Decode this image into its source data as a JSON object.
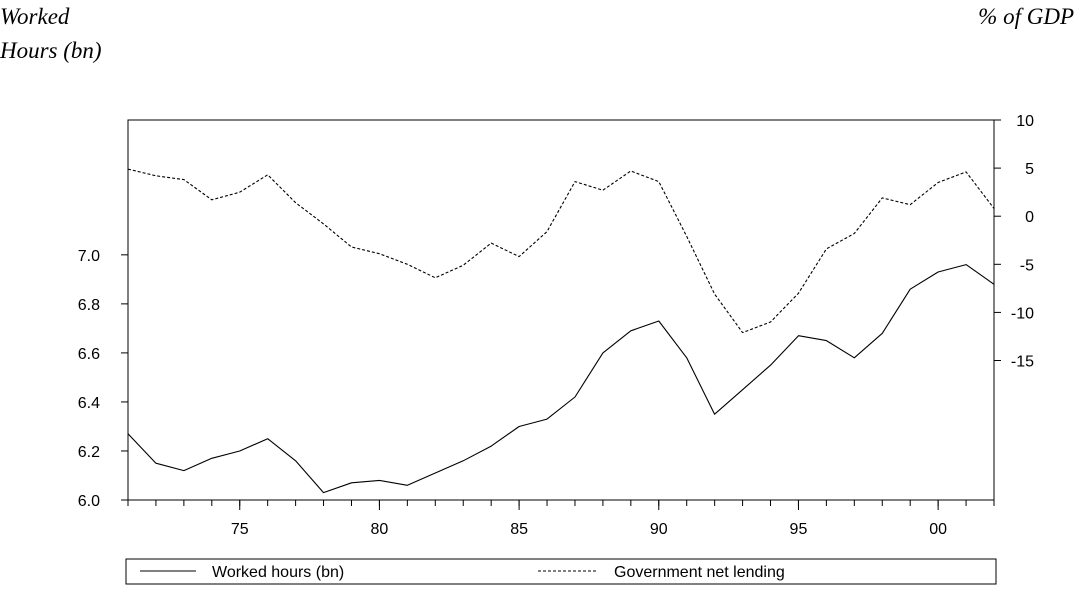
{
  "header": {
    "left_axis_title_line1": "Worked",
    "left_axis_title_line2": "Hours (bn)",
    "right_axis_title": "% of GDP"
  },
  "chart_data": {
    "type": "line",
    "title": "",
    "xlabel": "",
    "x": [
      1971,
      1972,
      1973,
      1974,
      1975,
      1976,
      1977,
      1978,
      1979,
      1980,
      1981,
      1982,
      1983,
      1984,
      1985,
      1986,
      1987,
      1988,
      1989,
      1990,
      1991,
      1992,
      1993,
      1994,
      1995,
      1996,
      1997,
      1998,
      1999,
      2000,
      2001,
      2002
    ],
    "x_tick_values": [
      1975,
      1980,
      1985,
      1990,
      1995,
      2000
    ],
    "x_tick_labels": [
      "75",
      "80",
      "85",
      "90",
      "95",
      "00"
    ],
    "xlim": [
      1971,
      2002
    ],
    "left_axis": {
      "ylim": [
        6.0,
        7.55
      ],
      "ticks": [
        6.0,
        6.2,
        6.4,
        6.6,
        6.8,
        7.0
      ],
      "tick_labels": [
        "6.0",
        "6.2",
        "6.4",
        "6.6",
        "6.8",
        "7.0"
      ]
    },
    "right_axis": {
      "ylim": [
        -29.5,
        10
      ],
      "ticks": [
        10,
        5,
        0,
        -5,
        -10,
        -15
      ],
      "tick_labels": [
        "10",
        "5",
        "0",
        "-5",
        "-10",
        "-15"
      ]
    },
    "series": [
      {
        "name": "Worked hours (bn)",
        "axis": "left",
        "style": "solid",
        "values": [
          6.27,
          6.15,
          6.12,
          6.17,
          6.2,
          6.25,
          6.16,
          6.03,
          6.07,
          6.08,
          6.06,
          6.11,
          6.16,
          6.22,
          6.3,
          6.33,
          6.42,
          6.6,
          6.69,
          6.73,
          6.58,
          6.35,
          6.45,
          6.55,
          6.67,
          6.65,
          6.58,
          6.68,
          6.86,
          6.93,
          6.96,
          6.88
        ]
      },
      {
        "name": "Government net lending",
        "axis": "right",
        "style": "dashed",
        "values": [
          4.9,
          4.2,
          3.8,
          1.7,
          2.5,
          4.3,
          1.4,
          -0.8,
          -3.2,
          -3.9,
          -5.0,
          -6.4,
          -5.1,
          -2.8,
          -4.2,
          -1.6,
          3.6,
          2.7,
          4.7,
          3.6,
          -2.1,
          -8.1,
          -12.1,
          -11.0,
          -8.0,
          -3.4,
          -1.8,
          1.9,
          1.2,
          3.5,
          4.6,
          0.8
        ]
      }
    ],
    "legend": {
      "placement": "bottom",
      "entries": [
        "Worked hours (bn)",
        "Government net lending"
      ]
    },
    "grid": false
  }
}
